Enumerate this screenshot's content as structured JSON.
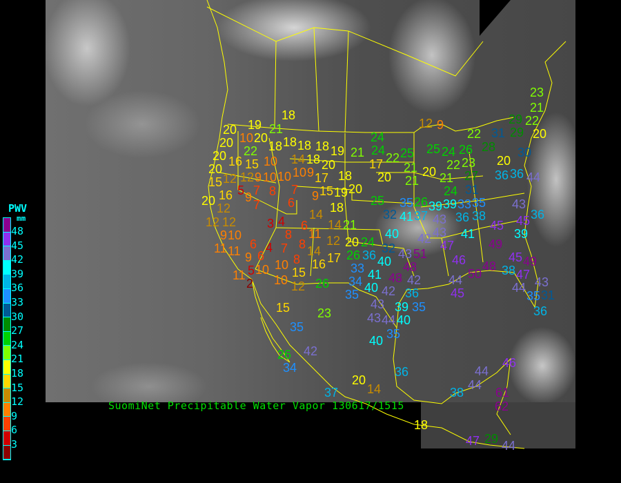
{
  "title": "SuomiNet Precipitable Water Vapor 130617/1515",
  "legend": {
    "title": "PWV",
    "unit": "mm",
    "labels": [
      "48",
      "45",
      "42",
      "39",
      "36",
      "33",
      "30",
      "27",
      "24",
      "21",
      "18",
      "15",
      "12",
      "9",
      "6",
      "3"
    ],
    "colors_top_to_bottom": [
      "#8b0090",
      "#9030f0",
      "#7b70d0",
      "#00ffff",
      "#00b4e6",
      "#1e90ff",
      "#005a96",
      "#008c00",
      "#00d200",
      "#80ff00",
      "#ffff00",
      "#ffd700",
      "#c88c00",
      "#ff8000",
      "#ff4000",
      "#d00000",
      "#8b0000"
    ]
  },
  "border_color": "#ffff00",
  "stations": [
    18,
    19,
    21,
    20,
    10,
    20,
    18,
    18,
    18,
    18,
    19,
    21,
    24,
    24,
    20,
    22,
    20,
    16,
    15,
    10,
    14,
    18,
    12,
    10,
    9,
    20,
    17,
    9,
    10,
    10,
    17,
    18,
    20,
    12,
    15,
    5,
    7,
    8,
    7,
    15,
    20,
    9,
    9,
    19,
    20,
    16,
    6,
    7,
    18,
    25,
    12,
    14,
    12,
    12,
    10,
    3,
    4,
    6,
    14,
    21,
    9,
    11,
    8,
    11,
    8,
    12,
    20,
    24,
    6,
    4,
    7,
    11,
    6,
    14,
    26,
    36,
    40,
    9,
    5,
    8,
    10,
    16,
    17,
    10,
    33,
    15,
    11,
    2,
    10,
    41,
    34,
    40,
    12,
    26,
    35,
    12,
    9,
    29,
    22,
    29,
    22,
    31,
    25,
    22,
    25,
    24,
    26,
    28,
    30,
    21,
    20,
    22,
    23,
    27,
    20,
    36,
    36,
    44,
    20,
    21,
    21,
    24,
    31,
    33,
    35,
    26,
    39,
    39,
    35,
    38,
    43,
    36,
    32,
    41,
    37,
    43,
    36,
    45,
    45,
    40,
    42,
    43,
    41,
    39,
    47,
    49,
    32,
    51,
    43,
    46,
    45,
    49,
    48,
    38,
    47,
    50,
    48,
    48,
    42,
    42,
    36,
    44,
    44,
    43,
    35,
    45,
    35,
    31,
    43,
    39,
    44,
    40,
    36,
    15,
    23,
    35,
    43,
    40,
    35,
    26,
    34,
    42,
    36,
    20,
    14,
    37,
    38,
    18,
    47,
    29,
    44,
    44,
    44,
    46,
    61,
    62,
    23,
    21,
    20
  ]
}
